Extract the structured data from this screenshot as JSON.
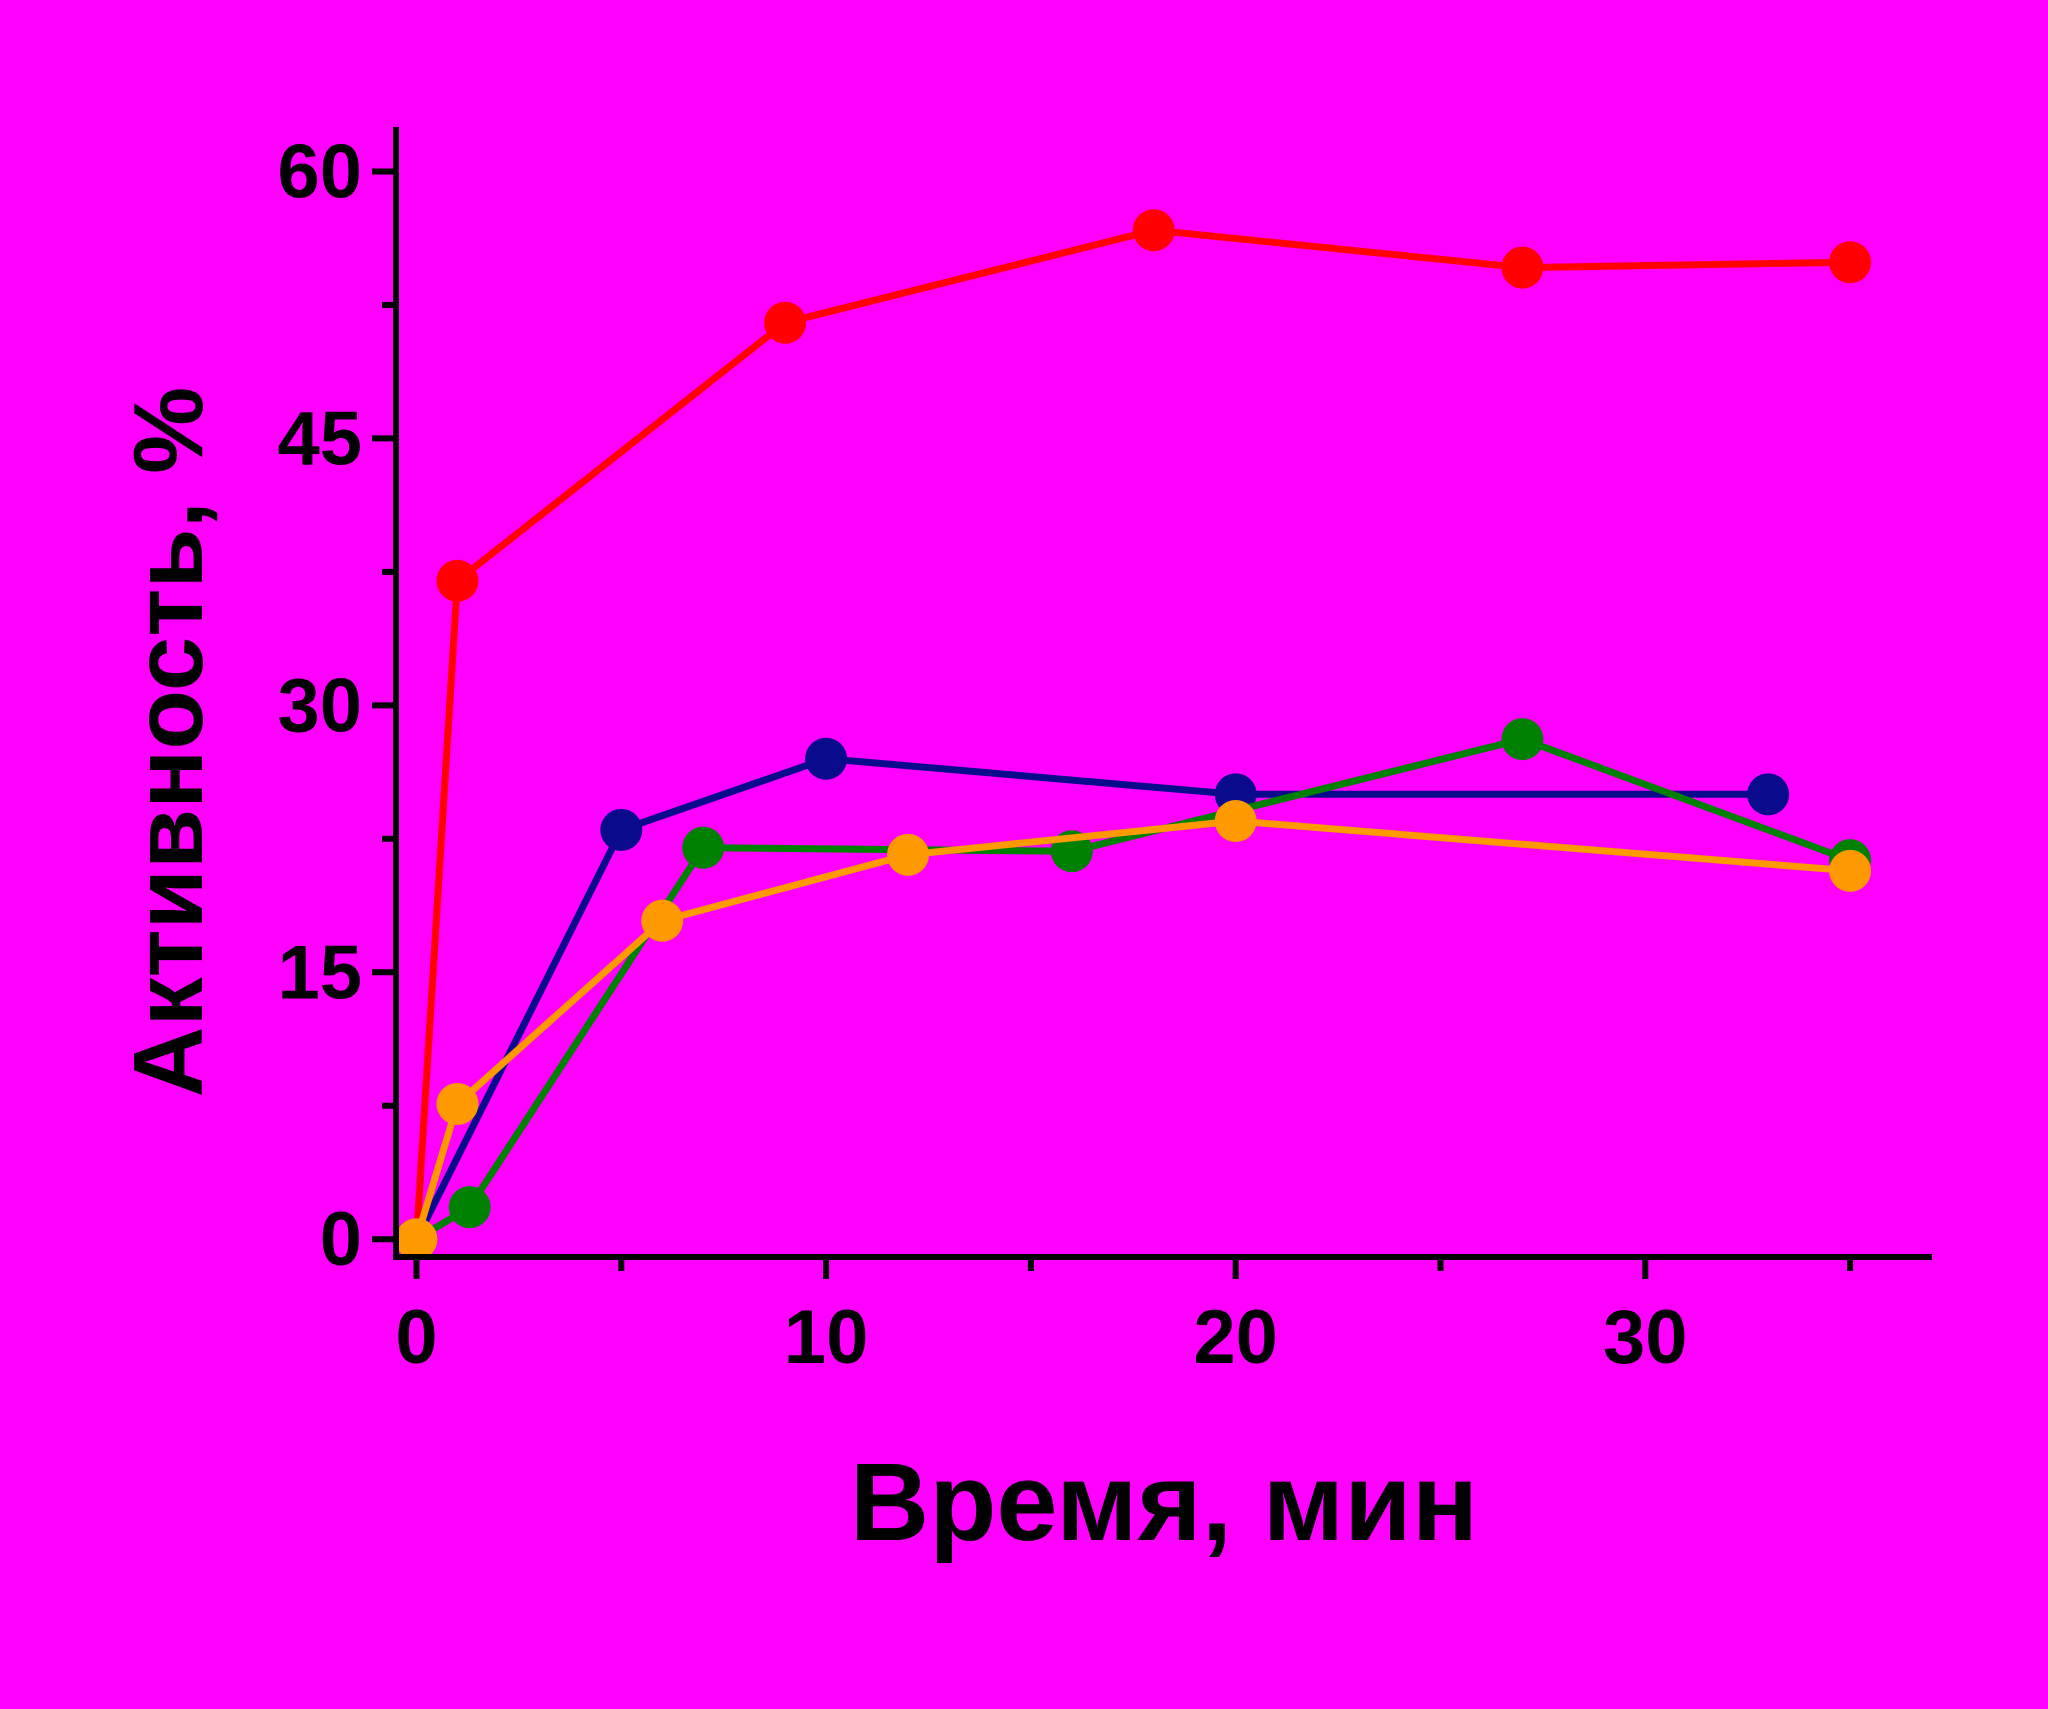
{
  "colors": {
    "background": "#ff00ff",
    "axis": "#000000"
  },
  "chart_data": {
    "type": "line",
    "title": "",
    "xlabel": "Время, мин",
    "ylabel": "Активность, %",
    "xlim": [
      -0.5,
      37
    ],
    "ylim": [
      -1,
      62.5
    ],
    "x_major_ticks": [
      0,
      10,
      20,
      30
    ],
    "x_tick_labels": [
      "0",
      "10",
      "20",
      "30"
    ],
    "x_minor_ticks": [
      5,
      15,
      25,
      35
    ],
    "y_major_ticks": [
      0,
      15,
      30,
      45,
      60
    ],
    "y_tick_labels": [
      "0",
      "15",
      "30",
      "45",
      "60"
    ],
    "y_minor_ticks": [
      7.5,
      22.5,
      37.5,
      52.5
    ],
    "grid": false,
    "legend": false,
    "series": [
      {
        "color": "#ff0000",
        "points": [
          [
            0,
            0
          ],
          [
            1,
            37
          ],
          [
            9,
            51.5
          ],
          [
            18,
            56.7
          ],
          [
            27,
            54.6
          ],
          [
            35,
            54.9
          ]
        ]
      },
      {
        "color": "#0a0a8c",
        "points": [
          [
            0,
            0
          ],
          [
            5,
            23
          ],
          [
            10,
            27
          ],
          [
            20,
            25
          ],
          [
            33,
            25
          ]
        ]
      },
      {
        "color": "#008000",
        "points": [
          [
            0,
            0
          ],
          [
            1.3,
            1.8
          ],
          [
            7,
            22
          ],
          [
            16,
            21.8
          ],
          [
            27,
            28.1
          ],
          [
            35,
            21.3
          ]
        ]
      },
      {
        "color": "#ff9900",
        "points": [
          [
            0,
            0
          ],
          [
            1,
            7.6
          ],
          [
            6,
            17.9
          ],
          [
            12,
            21.6
          ],
          [
            20,
            23.5
          ],
          [
            35,
            20.7
          ]
        ]
      }
    ]
  }
}
